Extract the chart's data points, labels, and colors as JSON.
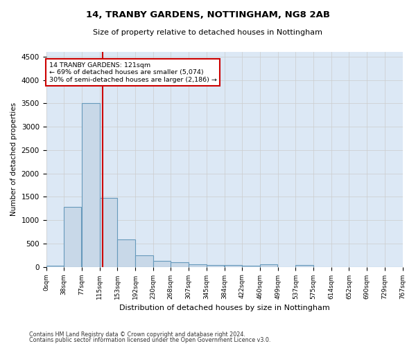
{
  "title": "14, TRANBY GARDENS, NOTTINGHAM, NG8 2AB",
  "subtitle": "Size of property relative to detached houses in Nottingham",
  "xlabel": "Distribution of detached houses by size in Nottingham",
  "ylabel": "Number of detached properties",
  "bin_edges": [
    0,
    38,
    77,
    115,
    153,
    192,
    230,
    268,
    307,
    345,
    384,
    422,
    460,
    499,
    537,
    575,
    614,
    652,
    690,
    729,
    767
  ],
  "bar_heights": [
    30,
    1280,
    3500,
    1480,
    580,
    240,
    120,
    90,
    60,
    40,
    40,
    30,
    50,
    0,
    35,
    0,
    0,
    0,
    0,
    0
  ],
  "bar_color": "#c8d8e8",
  "bar_edgecolor": "#6699bb",
  "bar_linewidth": 0.8,
  "grid_color": "#cccccc",
  "property_line_x": 121,
  "property_line_color": "#cc0000",
  "annotation_line1": "14 TRANBY GARDENS: 121sqm",
  "annotation_line2": "← 69% of detached houses are smaller (5,074)",
  "annotation_line3": "30% of semi-detached houses are larger (2,186) →",
  "annotation_box_color": "#cc0000",
  "annotation_box_facecolor": "#ffffff",
  "ylim": [
    0,
    4600
  ],
  "yticks": [
    0,
    500,
    1000,
    1500,
    2000,
    2500,
    3000,
    3500,
    4000,
    4500
  ],
  "tick_labels": [
    "0sqm",
    "38sqm",
    "77sqm",
    "115sqm",
    "153sqm",
    "192sqm",
    "230sqm",
    "268sqm",
    "307sqm",
    "345sqm",
    "384sqm",
    "422sqm",
    "460sqm",
    "499sqm",
    "537sqm",
    "575sqm",
    "614sqm",
    "652sqm",
    "690sqm",
    "729sqm",
    "767sqm"
  ],
  "footnote1": "Contains HM Land Registry data © Crown copyright and database right 2024.",
  "footnote2": "Contains public sector information licensed under the Open Government Licence v3.0.",
  "bg_color": "#ffffff",
  "plot_bg_color": "#dce8f5"
}
